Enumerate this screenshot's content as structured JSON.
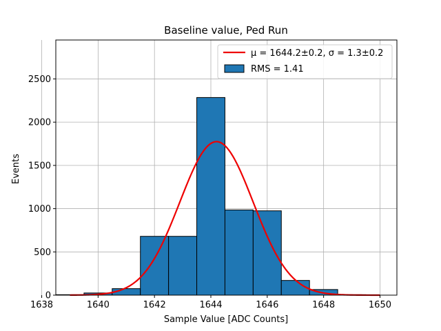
{
  "chart_data": {
    "type": "bar",
    "title": "Baseline value, Ped Run",
    "xlabel": "Sample Value [ADC Counts]",
    "ylabel": "Events",
    "xlim": [
      1638.5,
      1650.6
    ],
    "ylim": [
      0,
      2950
    ],
    "xticks": [
      1638,
      1640,
      1642,
      1644,
      1646,
      1648,
      1650
    ],
    "yticks": [
      0,
      500,
      1000,
      1500,
      2000,
      2500
    ],
    "grid": true,
    "legend_position": "top-right",
    "histogram": {
      "name": "RMS = 1.41",
      "color": "#1f77b4",
      "edge_color": "#000000",
      "bin_edges": [
        1638.5,
        1639.5,
        1640.5,
        1641.5,
        1642.5,
        1643.5,
        1644.5,
        1645.5,
        1646.5,
        1647.5,
        1648.5,
        1649.5
      ],
      "counts": [
        5,
        25,
        75,
        680,
        680,
        2285,
        985,
        975,
        170,
        65,
        5
      ]
    },
    "fit": {
      "name": "μ = 1644.2±0.2, σ = 1.3±0.2",
      "color": "#ee0000",
      "amplitude": 1775,
      "mean": 1644.2,
      "sigma": 1.3,
      "x_range": [
        1639,
        1650
      ]
    }
  }
}
